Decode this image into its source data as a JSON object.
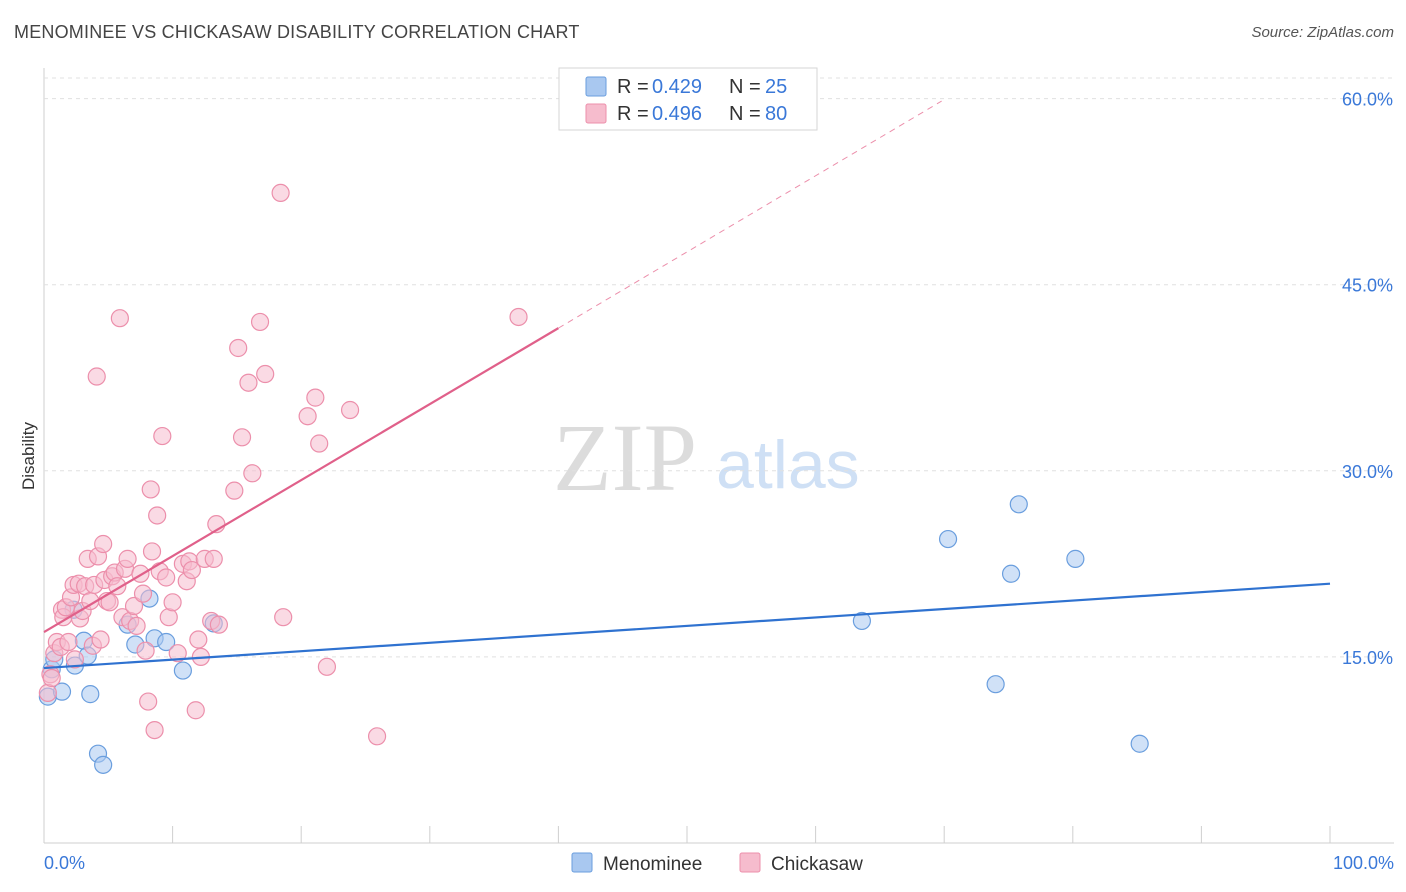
{
  "header": {
    "title": "MENOMINEE VS CHICKASAW DISABILITY CORRELATION CHART",
    "source": "Source: ZipAtlas.com"
  },
  "watermark": {
    "zip": "ZIP",
    "atlas": "atlas"
  },
  "colors": {
    "menominee_fill": "#a9c8f0",
    "menominee_stroke": "#6a9ede",
    "menominee_line": "#2f72d0",
    "chickasaw_fill": "#f6bccd",
    "chickasaw_stroke": "#ec8fab",
    "chickasaw_line": "#e0608a",
    "tick_text": "#3a78d8",
    "grid": "#e0e0e0"
  },
  "legend": {
    "rows": [
      {
        "r_label": "R = ",
        "r_value": "0.429",
        "n_label": "N = ",
        "n_value": "25"
      },
      {
        "r_label": "R = ",
        "r_value": "0.496",
        "n_label": "N = ",
        "n_value": "80"
      }
    ]
  },
  "chart_data": {
    "type": "scatter",
    "title": "MENOMINEE VS CHICKASAW DISABILITY CORRELATION CHART",
    "xlabel": "",
    "ylabel": "Disability",
    "xlim": [
      0,
      100
    ],
    "ylim": [
      0,
      61.5
    ],
    "x_tick_labels": [
      "0.0%",
      "100.0%"
    ],
    "y_ticks": [
      15,
      30,
      45,
      60
    ],
    "y_tick_labels": [
      "15.0%",
      "30.0%",
      "45.0%",
      "60.0%"
    ],
    "grid": true,
    "legend_position": "top-center",
    "series": [
      {
        "name": "Menominee",
        "r": 0.429,
        "n": 25,
        "trend": {
          "x0": 0,
          "y0": 14.1,
          "x1": 100,
          "y1": 20.9
        },
        "points": [
          [
            0.3,
            11.8
          ],
          [
            0.6,
            14.0
          ],
          [
            0.8,
            14.8
          ],
          [
            1.4,
            12.2
          ],
          [
            2.3,
            18.8
          ],
          [
            2.4,
            14.3
          ],
          [
            3.1,
            16.3
          ],
          [
            3.4,
            15.1
          ],
          [
            3.6,
            12.0
          ],
          [
            4.2,
            7.2
          ],
          [
            4.6,
            6.3
          ],
          [
            6.5,
            17.6
          ],
          [
            7.1,
            16.0
          ],
          [
            8.2,
            19.7
          ],
          [
            8.6,
            16.5
          ],
          [
            9.5,
            16.2
          ],
          [
            10.8,
            13.9
          ],
          [
            13.2,
            17.7
          ],
          [
            63.6,
            17.9
          ],
          [
            70.3,
            24.5
          ],
          [
            74.0,
            12.8
          ],
          [
            75.2,
            21.7
          ],
          [
            75.8,
            27.3
          ],
          [
            80.2,
            22.9
          ],
          [
            85.2,
            8.0
          ]
        ]
      },
      {
        "name": "Chickasaw",
        "r": 0.496,
        "n": 80,
        "trend": {
          "x0": 0,
          "y0": 17.0,
          "x1": 40,
          "y1": 41.5
        },
        "trend_extension": {
          "x0": 40,
          "y0": 41.5,
          "x1": 69.8,
          "y1": 59.8
        },
        "points": [
          [
            0.3,
            12.1
          ],
          [
            0.5,
            13.6
          ],
          [
            0.8,
            15.3
          ],
          [
            1.0,
            16.2
          ],
          [
            1.3,
            15.8
          ],
          [
            1.4,
            18.8
          ],
          [
            1.5,
            18.2
          ],
          [
            1.7,
            19.0
          ],
          [
            1.9,
            16.2
          ],
          [
            2.1,
            19.8
          ],
          [
            2.3,
            20.8
          ],
          [
            2.4,
            14.8
          ],
          [
            2.7,
            20.9
          ],
          [
            2.8,
            18.1
          ],
          [
            3.0,
            18.7
          ],
          [
            3.2,
            20.7
          ],
          [
            3.4,
            22.9
          ],
          [
            3.6,
            19.5
          ],
          [
            3.8,
            15.9
          ],
          [
            3.9,
            20.8
          ],
          [
            4.1,
            37.6
          ],
          [
            4.2,
            23.1
          ],
          [
            4.4,
            16.4
          ],
          [
            4.6,
            24.1
          ],
          [
            4.7,
            21.2
          ],
          [
            4.9,
            19.5
          ],
          [
            5.1,
            19.4
          ],
          [
            5.3,
            21.5
          ],
          [
            5.5,
            21.8
          ],
          [
            5.7,
            20.7
          ],
          [
            5.9,
            42.3
          ],
          [
            6.1,
            18.2
          ],
          [
            6.3,
            22.1
          ],
          [
            6.5,
            22.9
          ],
          [
            6.7,
            17.9
          ],
          [
            7.0,
            19.1
          ],
          [
            7.2,
            17.5
          ],
          [
            7.5,
            21.7
          ],
          [
            7.7,
            20.1
          ],
          [
            7.9,
            15.5
          ],
          [
            8.1,
            11.4
          ],
          [
            8.3,
            28.5
          ],
          [
            8.4,
            23.5
          ],
          [
            8.6,
            9.1
          ],
          [
            8.8,
            26.4
          ],
          [
            9.0,
            21.9
          ],
          [
            9.2,
            32.8
          ],
          [
            9.5,
            21.4
          ],
          [
            9.7,
            18.2
          ],
          [
            10.0,
            19.4
          ],
          [
            10.4,
            15.3
          ],
          [
            10.8,
            22.5
          ],
          [
            11.1,
            21.1
          ],
          [
            11.3,
            22.7
          ],
          [
            11.5,
            22.0
          ],
          [
            11.8,
            10.7
          ],
          [
            12.0,
            16.4
          ],
          [
            12.2,
            15.0
          ],
          [
            12.5,
            22.9
          ],
          [
            13.0,
            17.9
          ],
          [
            13.2,
            22.9
          ],
          [
            13.4,
            25.7
          ],
          [
            13.6,
            17.6
          ],
          [
            14.8,
            28.4
          ],
          [
            15.1,
            39.9
          ],
          [
            15.4,
            32.7
          ],
          [
            15.9,
            37.1
          ],
          [
            16.2,
            29.8
          ],
          [
            16.8,
            42.0
          ],
          [
            17.2,
            37.8
          ],
          [
            18.4,
            52.4
          ],
          [
            18.6,
            18.2
          ],
          [
            20.5,
            34.4
          ],
          [
            21.1,
            35.9
          ],
          [
            21.4,
            32.2
          ],
          [
            22.0,
            14.2
          ],
          [
            23.8,
            34.9
          ],
          [
            25.9,
            8.6
          ],
          [
            36.9,
            42.4
          ],
          [
            0.6,
            13.3
          ]
        ]
      }
    ]
  }
}
